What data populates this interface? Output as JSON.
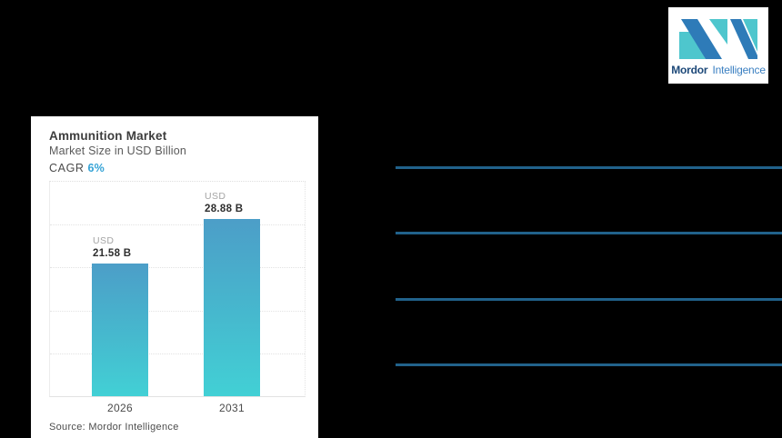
{
  "card": {
    "title": "Ammunition Market",
    "subtitle": "Market Size in USD Billion",
    "cagr_label": "CAGR",
    "cagr_value": "6%",
    "source": "Source: Mordor Intelligence",
    "bars": [
      {
        "year": "2026",
        "currency": "USD",
        "value_label": "21.58 B"
      },
      {
        "year": "2031",
        "currency": "USD",
        "value_label": "28.88 B"
      }
    ]
  },
  "chart_data": {
    "type": "bar",
    "title": "Ammunition Market",
    "subtitle": "Market Size in USD Billion",
    "unit": "USD Billion",
    "cagr": "6%",
    "categories": [
      "2026",
      "2031"
    ],
    "values": [
      21.58,
      28.88
    ],
    "data_labels": [
      "USD 21.58 B",
      "USD 28.88 B"
    ],
    "ylim": [
      0,
      35
    ],
    "grid": "horizontal-dotted",
    "legend": "none",
    "bar_gradient_top": "#4c9ec8",
    "bar_gradient_bottom": "#42d0d5",
    "source": "Source: Mordor Intelligence"
  },
  "logo": {
    "brand_bold": "Mordor",
    "brand_regular": "Intelligence",
    "mark_teal": "#4ec6cd",
    "mark_blue": "#2e7bb8",
    "text_bold_color": "#1c4878",
    "text_regular_color": "#3a7fc1"
  },
  "right_panel": {
    "separator_count": 4,
    "separator_color": "#21628b"
  },
  "colors": {
    "background": "#000000",
    "card_background": "#ffffff",
    "cagr_accent": "#35a3d6",
    "usd_label": "#a5a5a5",
    "value_text": "#2e2e2e"
  }
}
